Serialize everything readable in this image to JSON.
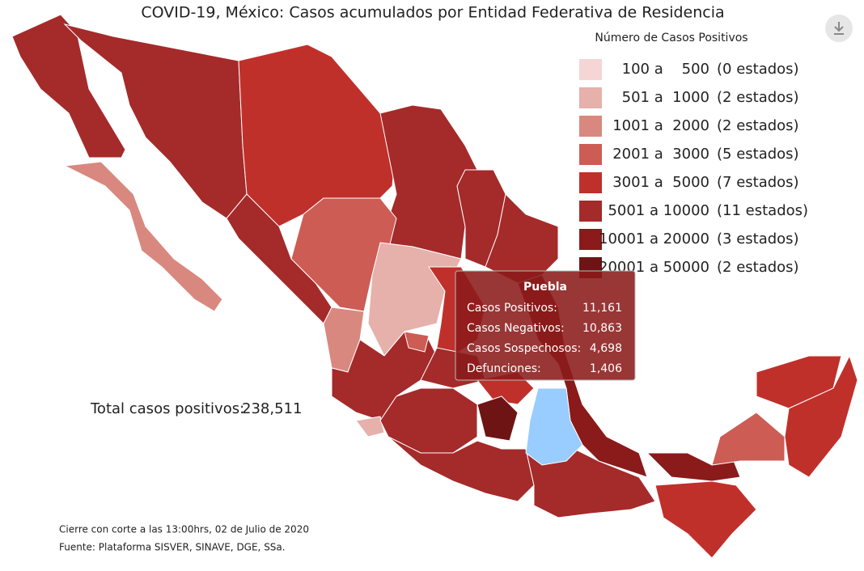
{
  "title": "COVID-19, México: Casos acumulados por Entidad Federativa de Residencia",
  "legend": {
    "title": "Número de Casos Positivos",
    "items": [
      {
        "label": "100 a    500",
        "count": "(0 estados)",
        "color": "#f5d5d5"
      },
      {
        "label": "501 a  1000",
        "count": "(2 estados)",
        "color": "#e6b0ab"
      },
      {
        "label": "1001 a  2000",
        "count": "(2 estados)",
        "color": "#d98880"
      },
      {
        "label": "2001 a  3000",
        "count": "(5 estados)",
        "color": "#cd5c55"
      },
      {
        "label": "3001 a  5000",
        "count": "(7 estados)",
        "color": "#c0302b"
      },
      {
        "label": "5001 a 10000",
        "count": "(11 estados)",
        "color": "#a52a2a"
      },
      {
        "label": "10001 a 20000",
        "count": "(3 estados)",
        "color": "#8b1a1a"
      },
      {
        "label": "20001 a 50000",
        "count": "(2 estados)",
        "color": "#6e1414"
      }
    ]
  },
  "tooltip": {
    "name": "Puebla",
    "rows": [
      {
        "label": "Casos Positivos:",
        "value": "11,161"
      },
      {
        "label": "Casos Negativos:",
        "value": "10,863"
      },
      {
        "label": "Casos Sospechosos:",
        "value": "4,698"
      },
      {
        "label": "Defunciones:",
        "value": "1,406"
      }
    ]
  },
  "total": {
    "label": "Total casos positivos:",
    "value": "238,511"
  },
  "footnotes": [
    "Cierre con corte a las 13:00hrs, 02 de Julio de 2020",
    "Fuente: Plataforma SISVER, SINAVE, DGE, SSa."
  ]
}
